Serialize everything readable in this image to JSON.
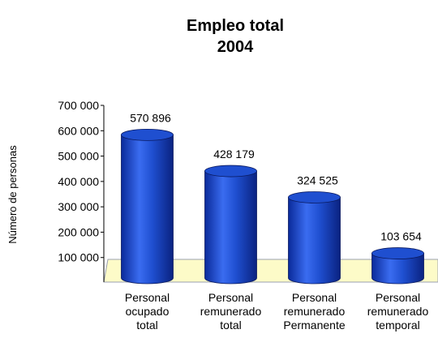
{
  "chart_data": {
    "type": "bar",
    "title": "Empleo total",
    "subtitle": "2004",
    "ylabel": "Número de personas",
    "categories": [
      "Personal ocupado total",
      "Personal remunerado total",
      "Personal remunerado Permanente",
      "Personal remunerado temporal"
    ],
    "values": [
      570896,
      428179,
      324525,
      103654
    ],
    "value_labels": [
      "570 896",
      "428 179",
      "324 525",
      "103 654"
    ],
    "color": "#1f4fd0",
    "ylim": [
      0,
      700000
    ],
    "yticks": [
      {
        "value": 100000,
        "label": "100 000"
      },
      {
        "value": 200000,
        "label": "200 000"
      },
      {
        "value": 300000,
        "label": "300 000"
      },
      {
        "value": 400000,
        "label": "400 000"
      },
      {
        "value": 500000,
        "label": "500 000"
      },
      {
        "value": 600000,
        "label": "600 000"
      },
      {
        "value": 700000,
        "label": "700 000"
      }
    ]
  }
}
